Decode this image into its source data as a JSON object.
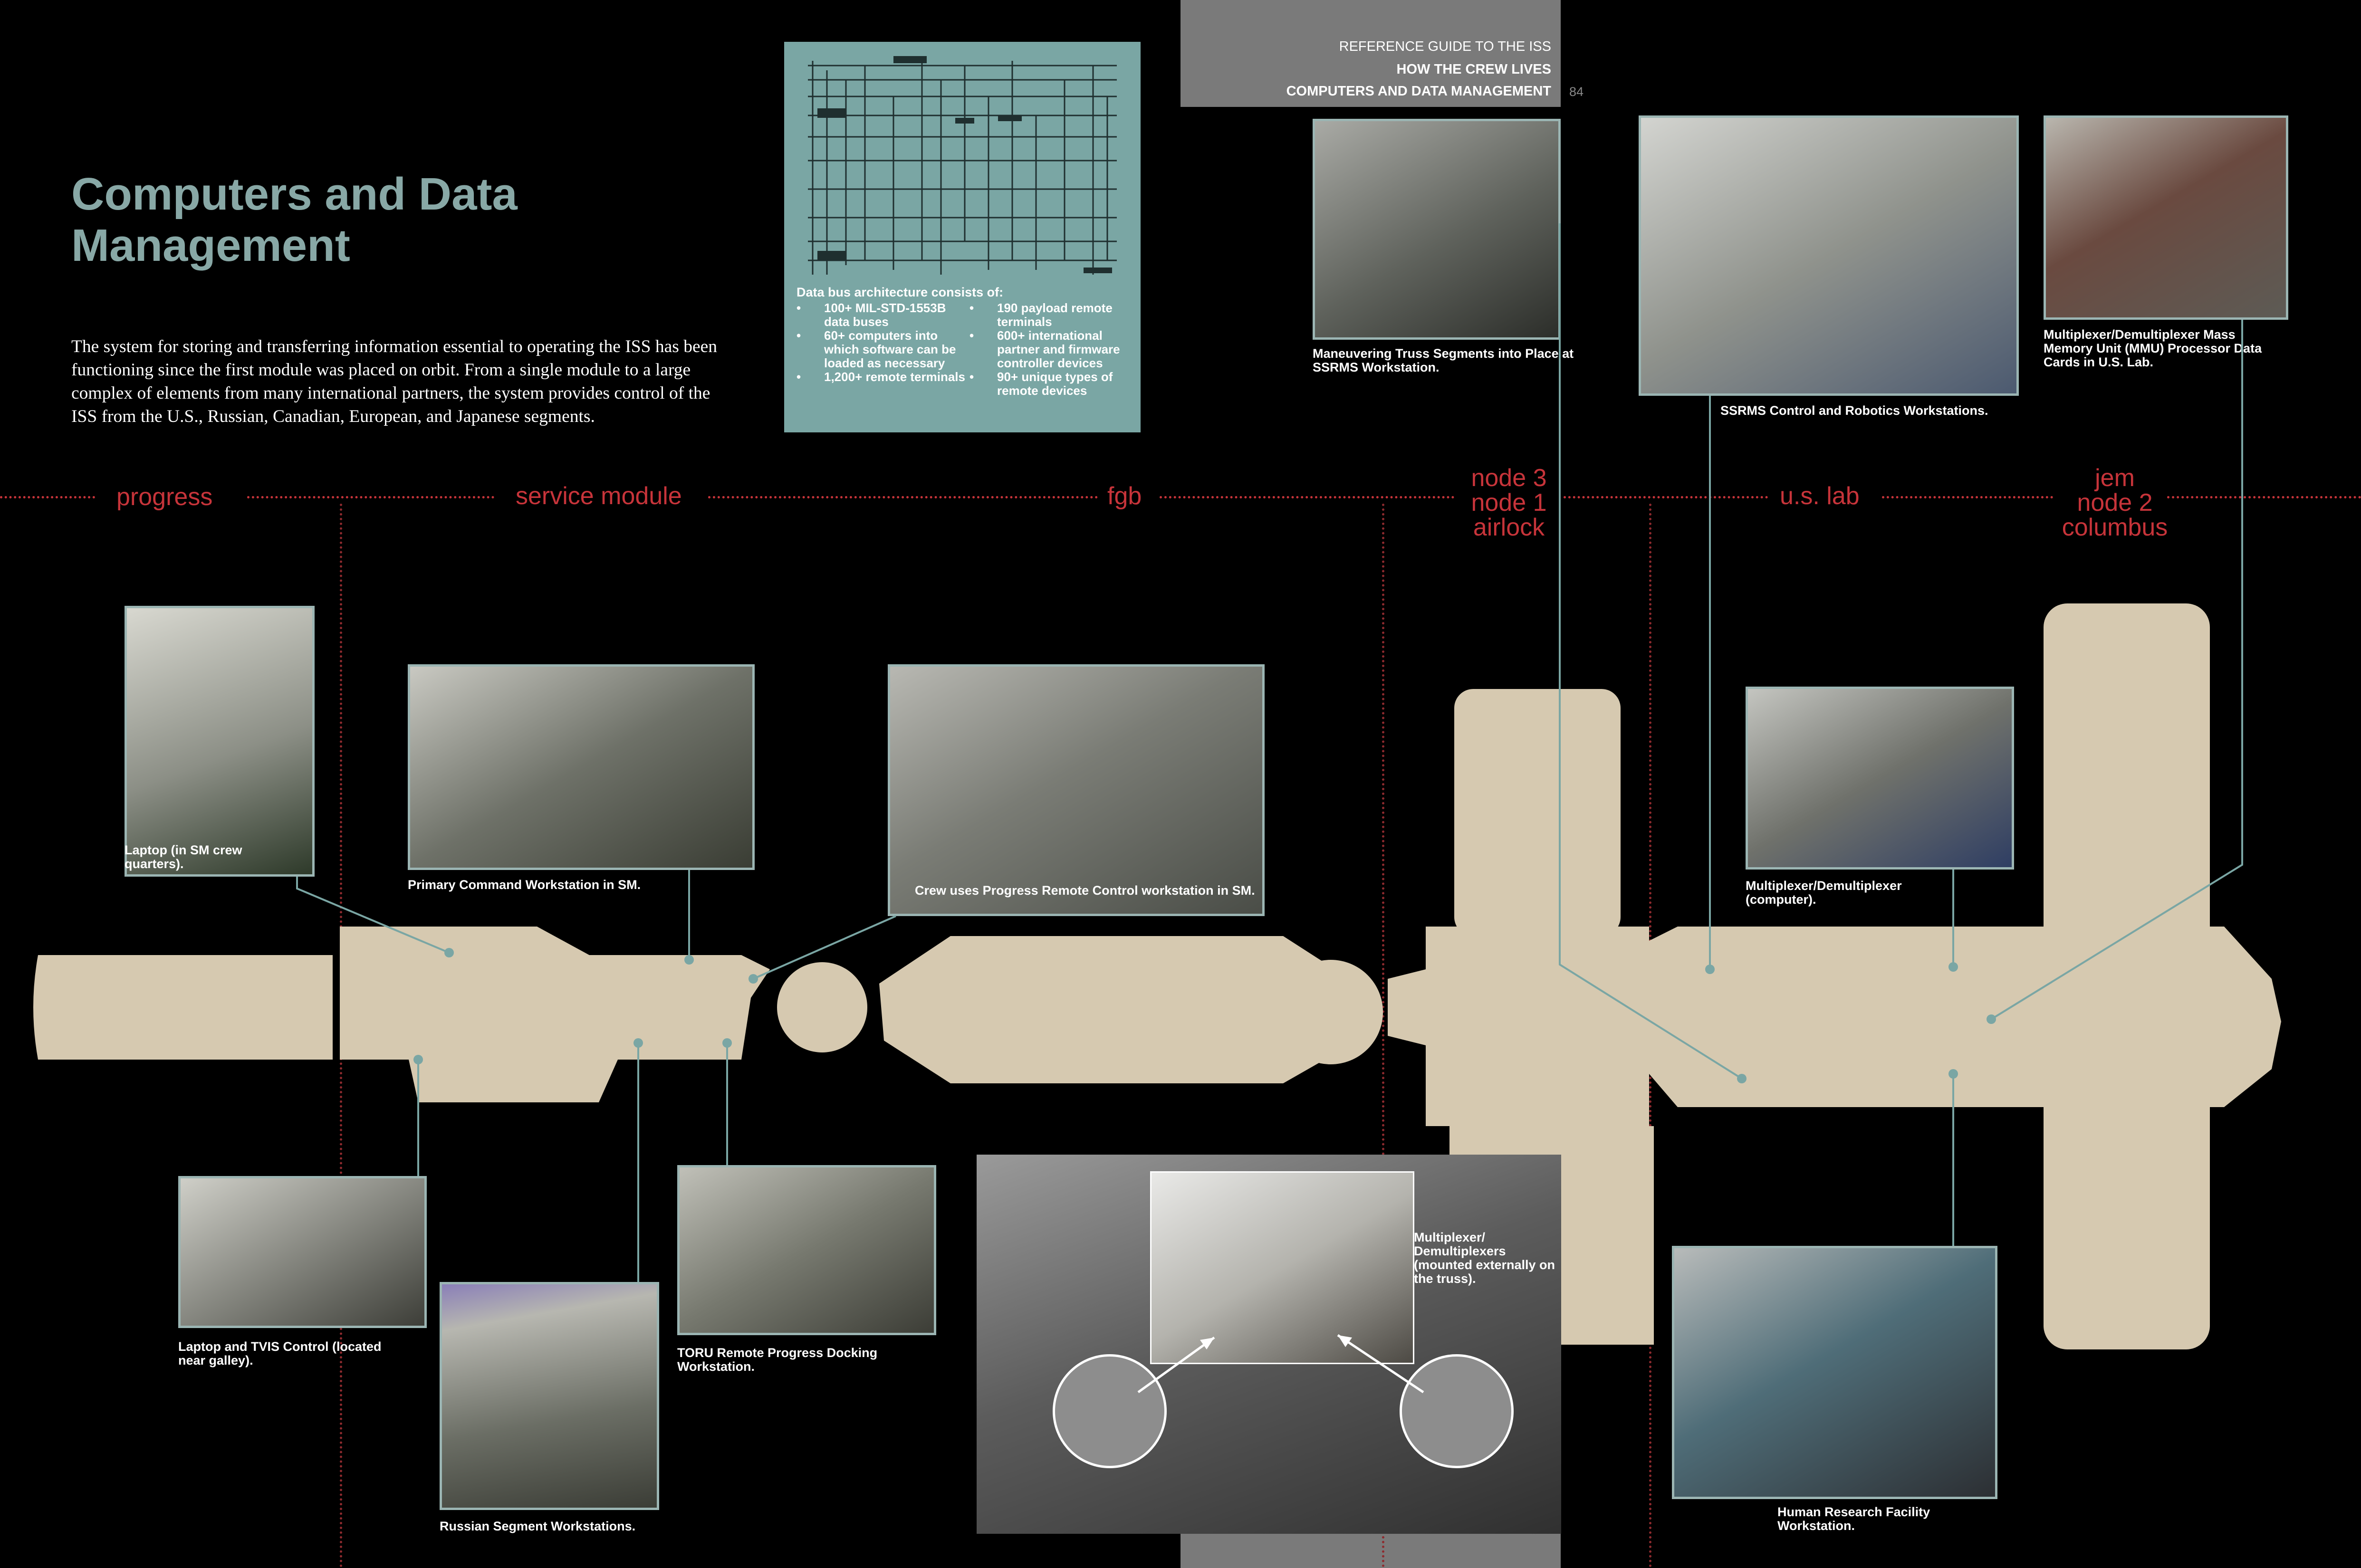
{
  "header": {
    "line1": "REFERENCE GUIDE TO THE ISS",
    "line2": "HOW THE CREW LIVES",
    "line3": "COMPUTERS AND DATA MANAGEMENT",
    "page_number": "84"
  },
  "title": "Computers and Data Management",
  "intro": "The system for storing and transferring information essential to operating the ISS has been functioning since the first module was placed on orbit. From a single module to a large complex of elements from many international partners, the system provides control of the ISS from the U.S., Russian, Canadian, European, and Japanese segments.",
  "data_bus": {
    "heading": "Data bus architecture consists of:",
    "left": [
      "100+ MIL-STD-1553B data buses",
      "60+ computers into which software can be loaded as necessary",
      "1,200+ remote terminals"
    ],
    "right": [
      "190 payload remote terminals",
      "600+ international partner and firmware controller devices",
      "90+ unique types of remote devices"
    ]
  },
  "segments": {
    "progress": "progress",
    "service_module": "service module",
    "fgb": "fgb",
    "node3_line1": "node 3",
    "node3_line2": "node 1",
    "node3_line3": "airlock",
    "us_lab": "u.s. lab",
    "jem_line1": "jem",
    "jem_line2": "node 2",
    "jem_line3": "columbus"
  },
  "captions": {
    "laptop_sm": "Laptop (in SM crew quarters).",
    "primary_command": "Primary Command Workstation in SM.",
    "progress_remote": "Crew uses Progress Remote Control workstation in SM.",
    "laptop_tvis": "Laptop and TVIS Control (located near galley).",
    "russian_segment": "Russian Segment Workstations.",
    "toru": "TORU Remote Progress Docking Workstation.",
    "mdm_truss": "Multiplexer/ Demultiplexers (mounted externally on the truss).",
    "maneuvering": "Maneuvering Truss Segments into Place at SSRMS Workstation.",
    "ssrms": "SSRMS Control and Robotics Workstations.",
    "mmu": "Multiplexer/Demultiplexer Mass Memory Unit (MMU) Processor Data Cards in U.S. Lab.",
    "mdm_computer": "Multiplexer/Demultiplexer (computer).",
    "hrf": "Human Research Facility Workstation."
  },
  "colors": {
    "accent_teal": "#7aa6a4",
    "segment_red": "#c7343a",
    "module_tan": "#d6c9b0",
    "background": "#000000",
    "header_gray": "#7a7a7a"
  }
}
